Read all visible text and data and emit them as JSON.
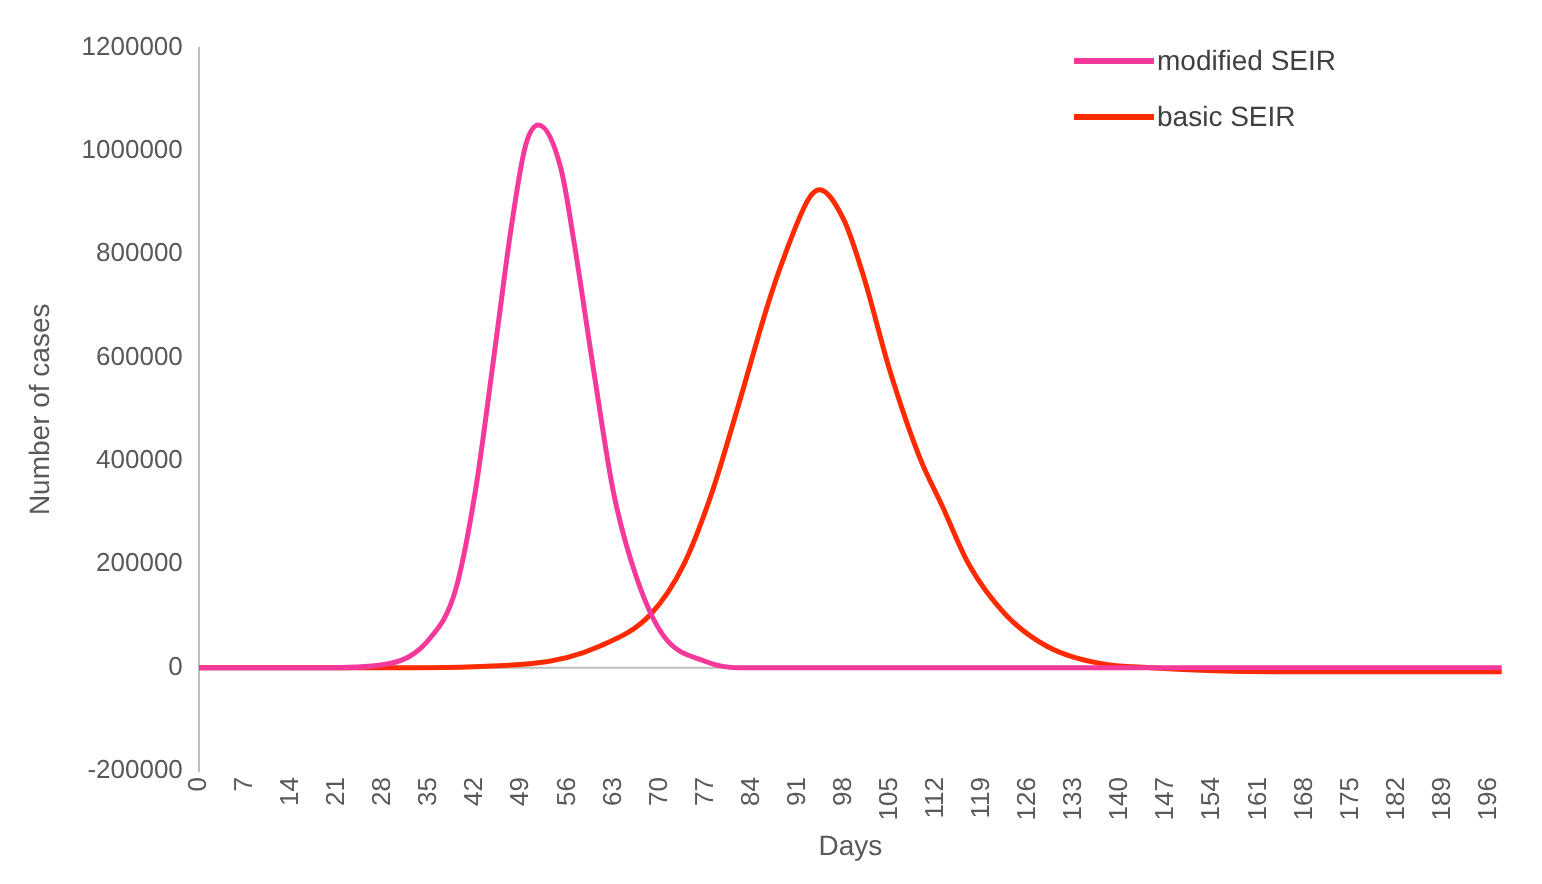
{
  "chart_data": {
    "type": "line",
    "xlabel": "Days",
    "ylabel": "Number of cases",
    "xlim": [
      0,
      198
    ],
    "xticks": [
      0,
      7,
      14,
      21,
      28,
      35,
      42,
      49,
      56,
      63,
      70,
      77,
      84,
      91,
      98,
      105,
      112,
      119,
      126,
      133,
      140,
      147,
      154,
      161,
      168,
      175,
      182,
      189,
      196
    ],
    "ylim": [
      -200000,
      1200000
    ],
    "yticks": [
      -200000,
      0,
      200000,
      400000,
      600000,
      800000,
      1000000,
      1200000
    ],
    "grid": false,
    "ref_lines": [
      {
        "axis": "y",
        "value": 0,
        "color": "#bfbfbf"
      }
    ],
    "legend": "top right",
    "marker": "none",
    "line_style": "solid",
    "series": [
      {
        "name": "modified SEIR",
        "color": "#f5399a",
        "x": [
          0,
          20,
          29,
          35,
          39,
          42,
          45,
          47.5,
          49.6,
          51.6,
          55,
          57,
          60,
          63,
          66.5,
          70.6,
          77,
          82,
          100,
          140,
          198
        ],
        "values": [
          0,
          0,
          8000,
          55000,
          150000,
          340000,
          617000,
          854000,
          1008000,
          1050000,
          967000,
          825000,
          575000,
          340000,
          175000,
          62000,
          12000,
          0,
          0,
          0,
          0
        ]
      },
      {
        "name": "basic SEIR",
        "color": "#ff2a00",
        "x": [
          0,
          30,
          50.6,
          61,
          68.7,
          73.7,
          78,
          82,
          86.4,
          88.6,
          92.7,
          94.3,
          98,
          101,
          105,
          109.5,
          113,
          117,
          122.5,
          128.8,
          137,
          144.6,
          165,
          198
        ],
        "values": [
          0,
          0,
          8000,
          42000,
          104000,
          200000,
          340000,
          508000,
          700000,
          783000,
          908000,
          925000,
          867000,
          758000,
          575000,
          408000,
          312000,
          200000,
          104000,
          42000,
          8000,
          0,
          -8000,
          -8000
        ]
      }
    ]
  }
}
